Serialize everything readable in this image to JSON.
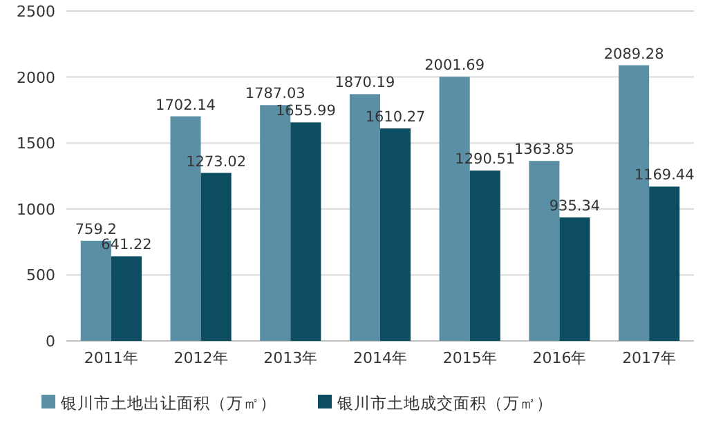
{
  "chart_data": {
    "type": "bar",
    "categories": [
      "2011年",
      "2012年",
      "2013年",
      "2014年",
      "2015年",
      "2016年",
      "2017年"
    ],
    "series": [
      {
        "name": "银川市土地出让面积（万㎡）",
        "color": "#5b8fa6",
        "values": [
          759.2,
          1702.14,
          1787.03,
          1870.19,
          2001.69,
          1363.85,
          2089.28
        ]
      },
      {
        "name": "银川市土地成交面积（万㎡）",
        "color": "#0d4d62",
        "values": [
          641.22,
          1273.02,
          1655.99,
          1610.27,
          1290.51,
          935.34,
          1169.44
        ]
      }
    ],
    "ylim": [
      0,
      2500
    ],
    "yticks": [
      0,
      500,
      1000,
      1500,
      2000,
      2500
    ],
    "grid": "y",
    "legend": "bottom",
    "data_labels": true
  }
}
